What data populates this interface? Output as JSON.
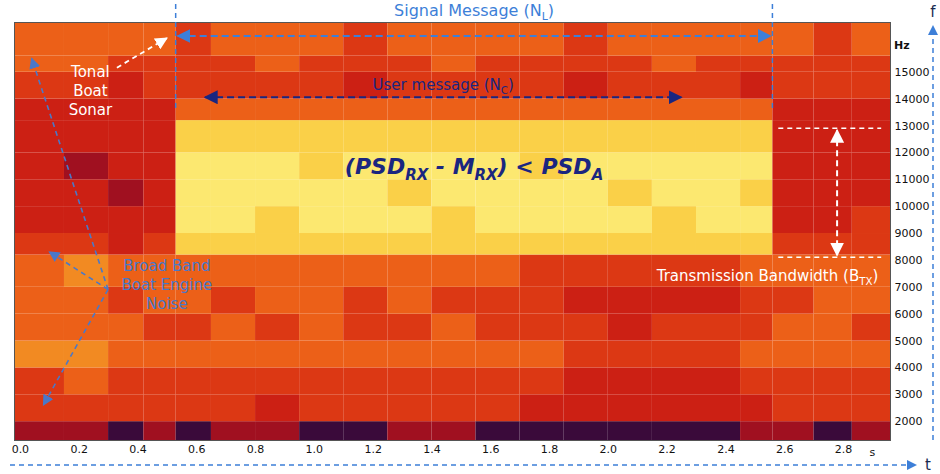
{
  "chart_data": {
    "type": "heatmap",
    "x_label": "s",
    "y_label": "Hz",
    "x_axis_name": "t",
    "y_axis_name": "f",
    "xlim": [
      -0.02,
      2.96
    ],
    "xticks": [
      {
        "value": 0,
        "label": "0.0"
      },
      0.2,
      0.4,
      0.6,
      0.8,
      {
        "value": 1,
        "label": "1.0"
      },
      1.2,
      1.4,
      1.6,
      1.8,
      {
        "value": 2,
        "label": "2.0"
      },
      2.2,
      2.4,
      2.6,
      2.8
    ],
    "ylim": [
      1300,
      16850
    ],
    "yticks": [
      2000,
      3000,
      4000,
      5000,
      6000,
      7000,
      8000,
      9000,
      10000,
      11000,
      12000,
      13000,
      14000,
      15000
    ],
    "cells": {
      "t_edges": [
        -0.02,
        0.15,
        0.3,
        0.42,
        0.53,
        0.65,
        0.8,
        0.95,
        1.1,
        1.25,
        1.4,
        1.55,
        1.7,
        1.85,
        2.0,
        2.15,
        2.3,
        2.45,
        2.56,
        2.7,
        2.83,
        2.96
      ],
      "f_edges": [
        1300,
        2000,
        3000,
        4000,
        5000,
        6000,
        7000,
        8200,
        9000,
        10000,
        11000,
        12000,
        13200,
        14000,
        15000,
        15600,
        16850
      ],
      "levels": [
        [
          2,
          2,
          1,
          2,
          1,
          2,
          2,
          1,
          1,
          2,
          2,
          1,
          1,
          1,
          1,
          1,
          1,
          2,
          2,
          1,
          2
        ],
        [
          4,
          4,
          4,
          4,
          4,
          4,
          3,
          4,
          4,
          4,
          4,
          4,
          3,
          3,
          3,
          3,
          3,
          3,
          4,
          4,
          4
        ],
        [
          4,
          5,
          4,
          4,
          4,
          4,
          4,
          4,
          4,
          4,
          4,
          4,
          4,
          3,
          3,
          3,
          3,
          4,
          4,
          4,
          4
        ],
        [
          6,
          6,
          5,
          5,
          5,
          5,
          5,
          5,
          5,
          5,
          5,
          5,
          5,
          4,
          4,
          4,
          4,
          5,
          5,
          5,
          5
        ],
        [
          5,
          5,
          5,
          4,
          4,
          5,
          4,
          5,
          4,
          4,
          5,
          4,
          4,
          4,
          3,
          4,
          4,
          4,
          5,
          5,
          4
        ],
        [
          5,
          5,
          4,
          5,
          5,
          4,
          5,
          5,
          4,
          5,
          4,
          4,
          4,
          3,
          3,
          3,
          3,
          4,
          4,
          5,
          5
        ],
        [
          5,
          6,
          5,
          5,
          5,
          5,
          5,
          5,
          5,
          5,
          5,
          5,
          4,
          4,
          4,
          4,
          4,
          5,
          5,
          5,
          5
        ],
        [
          4,
          4,
          3,
          4,
          8,
          8,
          8,
          8,
          8,
          8,
          8,
          8,
          8,
          8,
          8,
          8,
          8,
          8,
          4,
          4,
          4
        ],
        [
          3,
          3,
          3,
          3,
          9,
          9,
          8,
          9,
          9,
          9,
          8,
          9,
          9,
          9,
          9,
          8,
          9,
          9,
          3,
          3,
          4
        ],
        [
          3,
          3,
          2,
          3,
          9,
          9,
          9,
          9,
          9,
          8,
          9,
          9,
          9,
          9,
          8,
          9,
          9,
          8,
          3,
          3,
          3
        ],
        [
          3,
          2,
          3,
          3,
          9,
          9,
          9,
          8,
          9,
          9,
          9,
          9,
          8,
          9,
          9,
          9,
          9,
          9,
          3,
          3,
          3
        ],
        [
          3,
          3,
          3,
          3,
          8,
          8,
          8,
          8,
          8,
          8,
          8,
          8,
          8,
          8,
          8,
          8,
          8,
          8,
          3,
          3,
          3
        ],
        [
          3,
          3,
          3,
          3,
          5,
          5,
          5,
          5,
          5,
          5,
          5,
          5,
          5,
          5,
          5,
          5,
          5,
          5,
          3,
          3,
          3
        ],
        [
          4,
          4,
          3,
          4,
          4,
          4,
          4,
          4,
          3,
          4,
          4,
          4,
          4,
          3,
          4,
          4,
          4,
          3,
          4,
          4,
          4
        ],
        [
          5,
          5,
          4,
          4,
          4,
          4,
          5,
          4,
          4,
          4,
          5,
          4,
          4,
          4,
          4,
          5,
          4,
          4,
          4,
          4,
          4
        ],
        [
          5,
          5,
          5,
          5,
          4,
          5,
          5,
          5,
          4,
          5,
          5,
          5,
          5,
          4,
          5,
          5,
          5,
          5,
          5,
          4,
          5
        ]
      ]
    },
    "annotations": {
      "signal_message": {
        "text": [
          {
            "t": "Signal Message (N"
          },
          {
            "t": "L",
            "sub": true
          },
          {
            "t": ")"
          }
        ],
        "t": [
          0.53,
          2.56
        ]
      },
      "user_message": {
        "text": [
          {
            "t": "User message (N"
          },
          {
            "t": "C",
            "sub": true
          },
          {
            "t": ")"
          }
        ],
        "t": [
          0.63,
          2.25
        ]
      },
      "condition": {
        "text": [
          {
            "t": "(PSD"
          },
          {
            "t": "RX",
            "sub": true
          },
          {
            "t": " - M"
          },
          {
            "t": "RX",
            "sub": true
          },
          {
            "t": ") < PSD"
          },
          {
            "t": "A",
            "sub": true
          }
        ]
      },
      "transmission_bandwidth": {
        "text": [
          {
            "t": "Transmission Bandwidth (B"
          },
          {
            "t": "TX",
            "sub": true
          },
          {
            "t": ")"
          }
        ],
        "f": [
          8100,
          12900
        ]
      },
      "tonal_boat_sonar": {
        "lines": [
          "Tonal",
          "Boat",
          "Sonar"
        ]
      },
      "engine_noise": {
        "lines": [
          "Broad Band",
          "Boat Engine",
          "Noise"
        ]
      }
    }
  }
}
